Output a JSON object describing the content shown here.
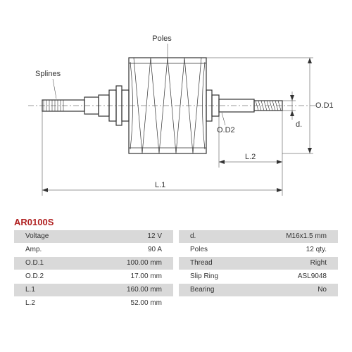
{
  "part_code": "AR0100S",
  "part_code_color": "#b02020",
  "diagram": {
    "labels": {
      "splines": "Splines",
      "poles": "Poles",
      "od1": "O.D1",
      "od2": "O.D2",
      "d": "d.",
      "l1": "L.1",
      "l2": "L.2"
    }
  },
  "specs_left": [
    {
      "label": "Voltage",
      "value": "12 V"
    },
    {
      "label": "Amp.",
      "value": "90 A"
    },
    {
      "label": "O.D.1",
      "value": "100.00 mm"
    },
    {
      "label": "O.D.2",
      "value": "17.00 mm"
    },
    {
      "label": "L.1",
      "value": "160.00 mm"
    },
    {
      "label": "L.2",
      "value": "52.00 mm"
    }
  ],
  "specs_right": [
    {
      "label": "d.",
      "value": "M16x1.5 mm"
    },
    {
      "label": "Poles",
      "value": "12 qty."
    },
    {
      "label": "Thread",
      "value": "Right"
    },
    {
      "label": "Slip Ring",
      "value": "ASL9048"
    },
    {
      "label": "Bearing",
      "value": "No"
    }
  ]
}
